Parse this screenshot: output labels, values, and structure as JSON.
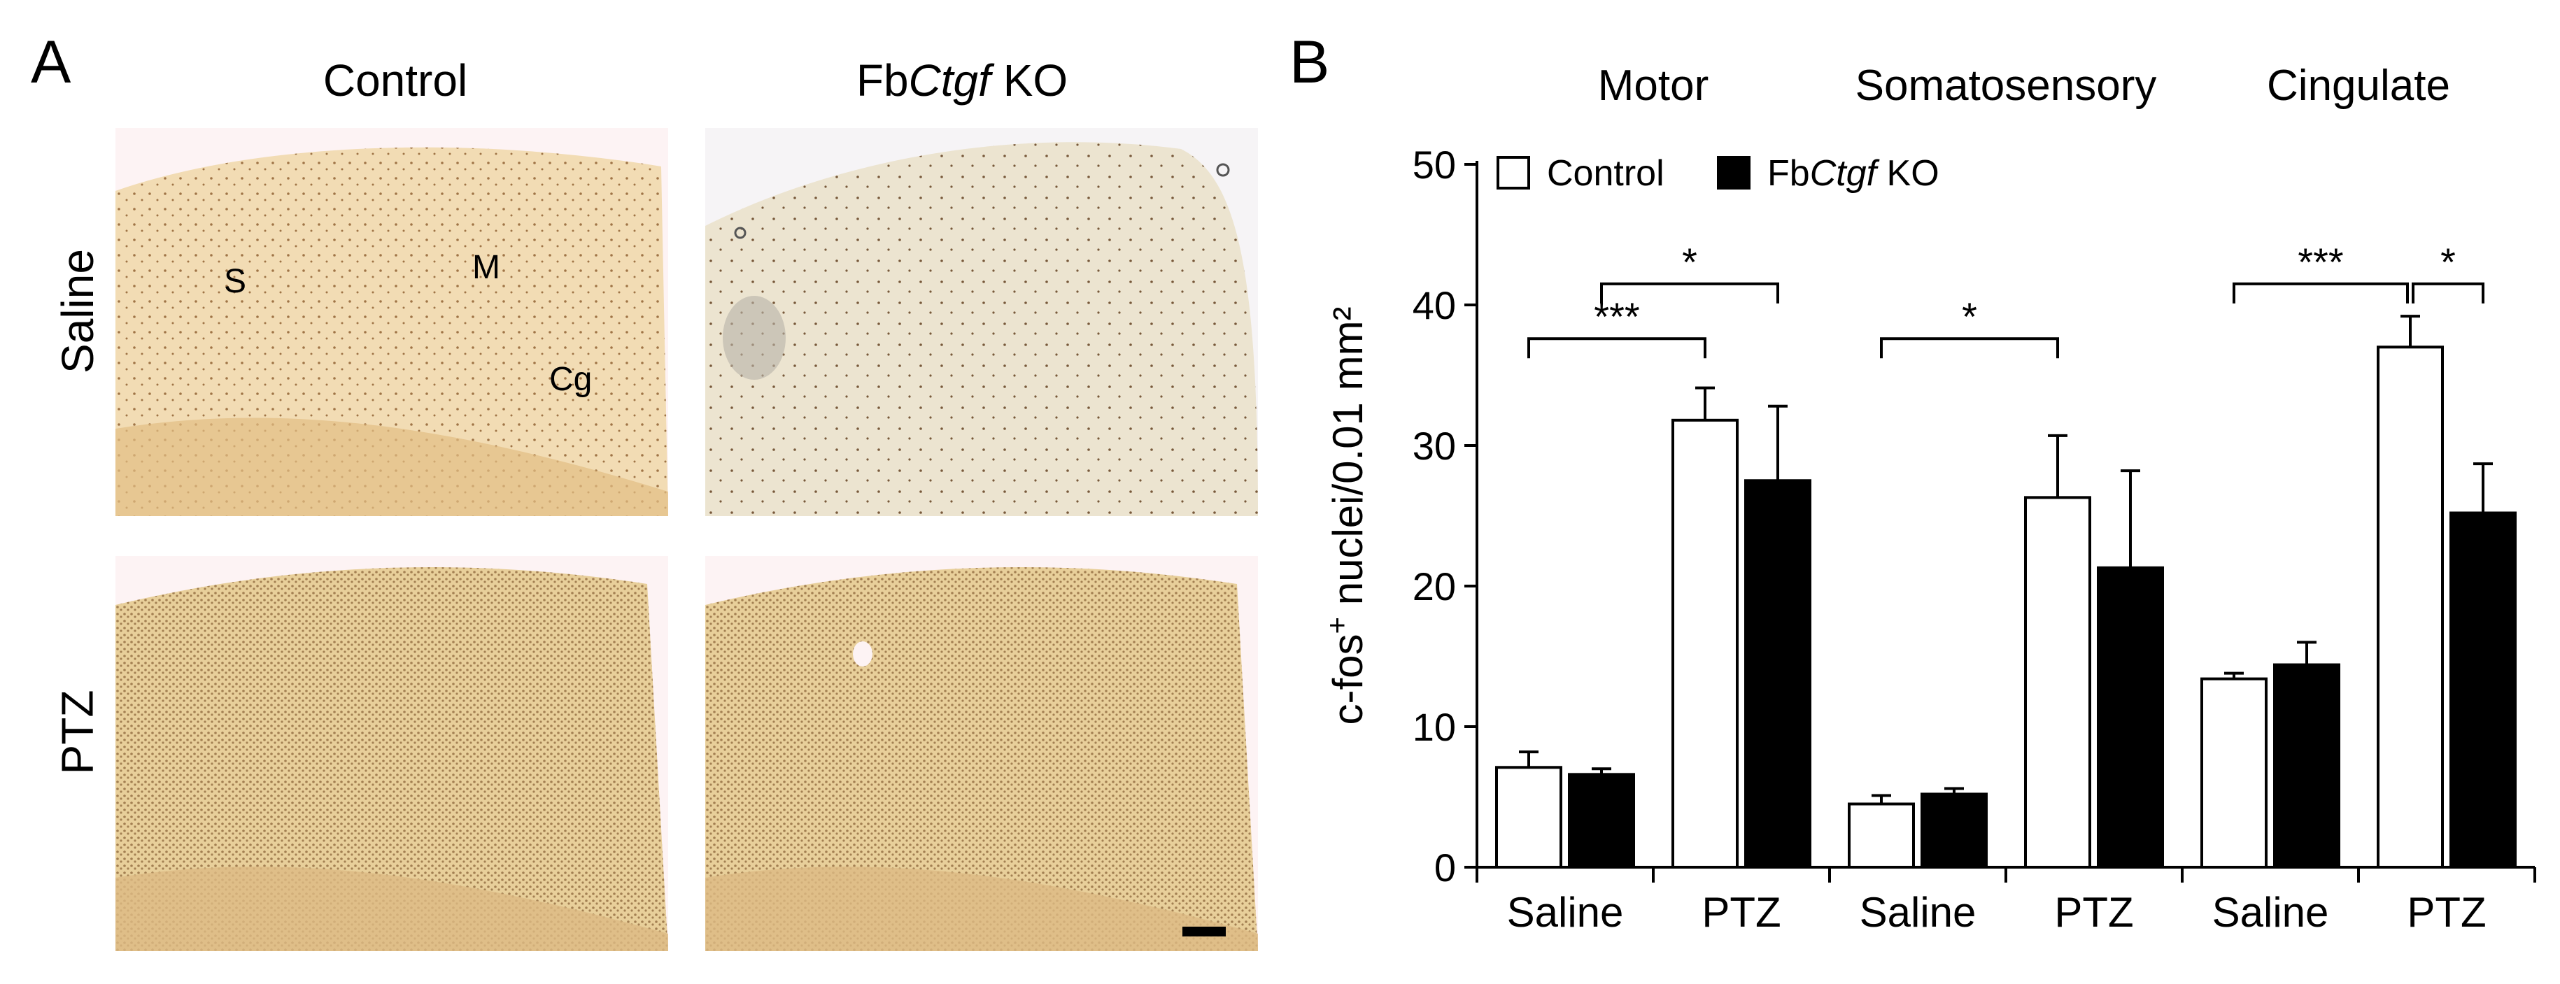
{
  "panel_a": {
    "letter": "A",
    "col_titles": {
      "control": "Control",
      "ko_prefix": "Fb",
      "ko_italic": "Ctgf",
      "ko_suffix": " KO"
    },
    "row_titles": [
      "Saline",
      "PTZ"
    ],
    "region_labels": {
      "s": "S",
      "m": "M",
      "cg": "Cg"
    },
    "tissue_colors": {
      "saline_control": "#f2dcb4",
      "saline_ko": "#ece4d0",
      "ptz": "#e8cf9a",
      "background": "#fdf3f4"
    }
  },
  "panel_b": {
    "letter": "B"
  },
  "chart_data": {
    "type": "bar",
    "region_titles": [
      "Motor",
      "Somatosensory",
      "Cingulate"
    ],
    "groups": [
      {
        "region": "Motor",
        "treatment": "Saline"
      },
      {
        "region": "Motor",
        "treatment": "PTZ"
      },
      {
        "region": "Somatosensory",
        "treatment": "Saline"
      },
      {
        "region": "Somatosensory",
        "treatment": "PTZ"
      },
      {
        "region": "Cingulate",
        "treatment": "Saline"
      },
      {
        "region": "Cingulate",
        "treatment": "PTZ"
      }
    ],
    "series": [
      {
        "legend_label": "Control",
        "fill": "#ffffff",
        "values": [
          7.1,
          31.8,
          4.5,
          26.3,
          13.4,
          37.0
        ],
        "errors": [
          1.1,
          2.3,
          0.6,
          4.4,
          0.4,
          2.2
        ]
      },
      {
        "legend_prefix": "Fb",
        "legend_italic": "Ctgf",
        "legend_suffix": " KO",
        "fill": "#000000",
        "values": [
          6.6,
          27.5,
          5.2,
          21.3,
          14.4,
          25.2
        ],
        "errors": [
          0.4,
          5.3,
          0.4,
          6.9,
          1.6,
          3.5
        ]
      }
    ],
    "ylabel_prefix": "c-fos",
    "ylabel_sup": "+",
    "ylabel_suffix": " nuclei/0.01 mm²",
    "ylim": [
      0,
      50
    ],
    "yticks": [
      0,
      10,
      20,
      30,
      40,
      50
    ],
    "legend_position": "top-left",
    "grid": false,
    "significance": [
      {
        "from": "Control Saline (Motor)",
        "to": "Control PTZ (Motor)",
        "label": "***"
      },
      {
        "from": "KO Saline (Motor)",
        "to": "KO PTZ (Motor)",
        "label": "*"
      },
      {
        "from": "Control Saline (Somatosensory)",
        "to": "Control PTZ (Somatosensory)",
        "label": "*"
      },
      {
        "from": "Control Saline (Cingulate)",
        "to": "Control PTZ (Cingulate)",
        "label": "***"
      },
      {
        "from": "Control PTZ (Cingulate)",
        "to": "KO PTZ (Cingulate)",
        "label": "*"
      }
    ]
  }
}
